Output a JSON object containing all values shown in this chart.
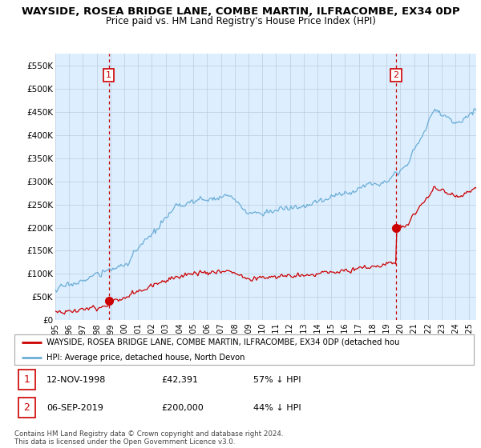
{
  "title": "WAYSIDE, ROSEA BRIDGE LANE, COMBE MARTIN, ILFRACOMBE, EX34 0DP",
  "subtitle": "Price paid vs. HM Land Registry's House Price Index (HPI)",
  "ylim": [
    0,
    575000
  ],
  "yticks": [
    0,
    50000,
    100000,
    150000,
    200000,
    250000,
    300000,
    350000,
    400000,
    450000,
    500000,
    550000
  ],
  "ytick_labels": [
    "£0",
    "£50K",
    "£100K",
    "£150K",
    "£200K",
    "£250K",
    "£300K",
    "£350K",
    "£400K",
    "£450K",
    "£500K",
    "£550K"
  ],
  "xlim_start": 1995.0,
  "xlim_end": 2025.5,
  "xtick_years": [
    1995,
    1996,
    1997,
    1998,
    1999,
    2000,
    2001,
    2002,
    2003,
    2004,
    2005,
    2006,
    2007,
    2008,
    2009,
    2010,
    2011,
    2012,
    2013,
    2014,
    2015,
    2016,
    2017,
    2018,
    2019,
    2020,
    2021,
    2022,
    2023,
    2024,
    2025
  ],
  "hpi_color": "#6baed6",
  "price_color": "#cc0000",
  "sale1_x": 1998.87,
  "sale1_y": 42391,
  "sale1_label": "1",
  "sale2_x": 2019.68,
  "sale2_y": 200000,
  "sale2_label": "2",
  "vline_color": "#cc0000",
  "chart_bg_color": "#ddeeff",
  "background_color": "#ffffff",
  "grid_color": "#bbccdd",
  "legend_line1": "WAYSIDE, ROSEA BRIDGE LANE, COMBE MARTIN, ILFRACOMBE, EX34 0DP (detached hou",
  "legend_line2": "HPI: Average price, detached house, North Devon",
  "table_row1": [
    "1",
    "12-NOV-1998",
    "£42,391",
    "57% ↓ HPI"
  ],
  "table_row2": [
    "2",
    "06-SEP-2019",
    "£200,000",
    "44% ↓ HPI"
  ],
  "footer": "Contains HM Land Registry data © Crown copyright and database right 2024.\nThis data is licensed under the Open Government Licence v3.0.",
  "title_fontsize": 10,
  "subtitle_fontsize": 9
}
